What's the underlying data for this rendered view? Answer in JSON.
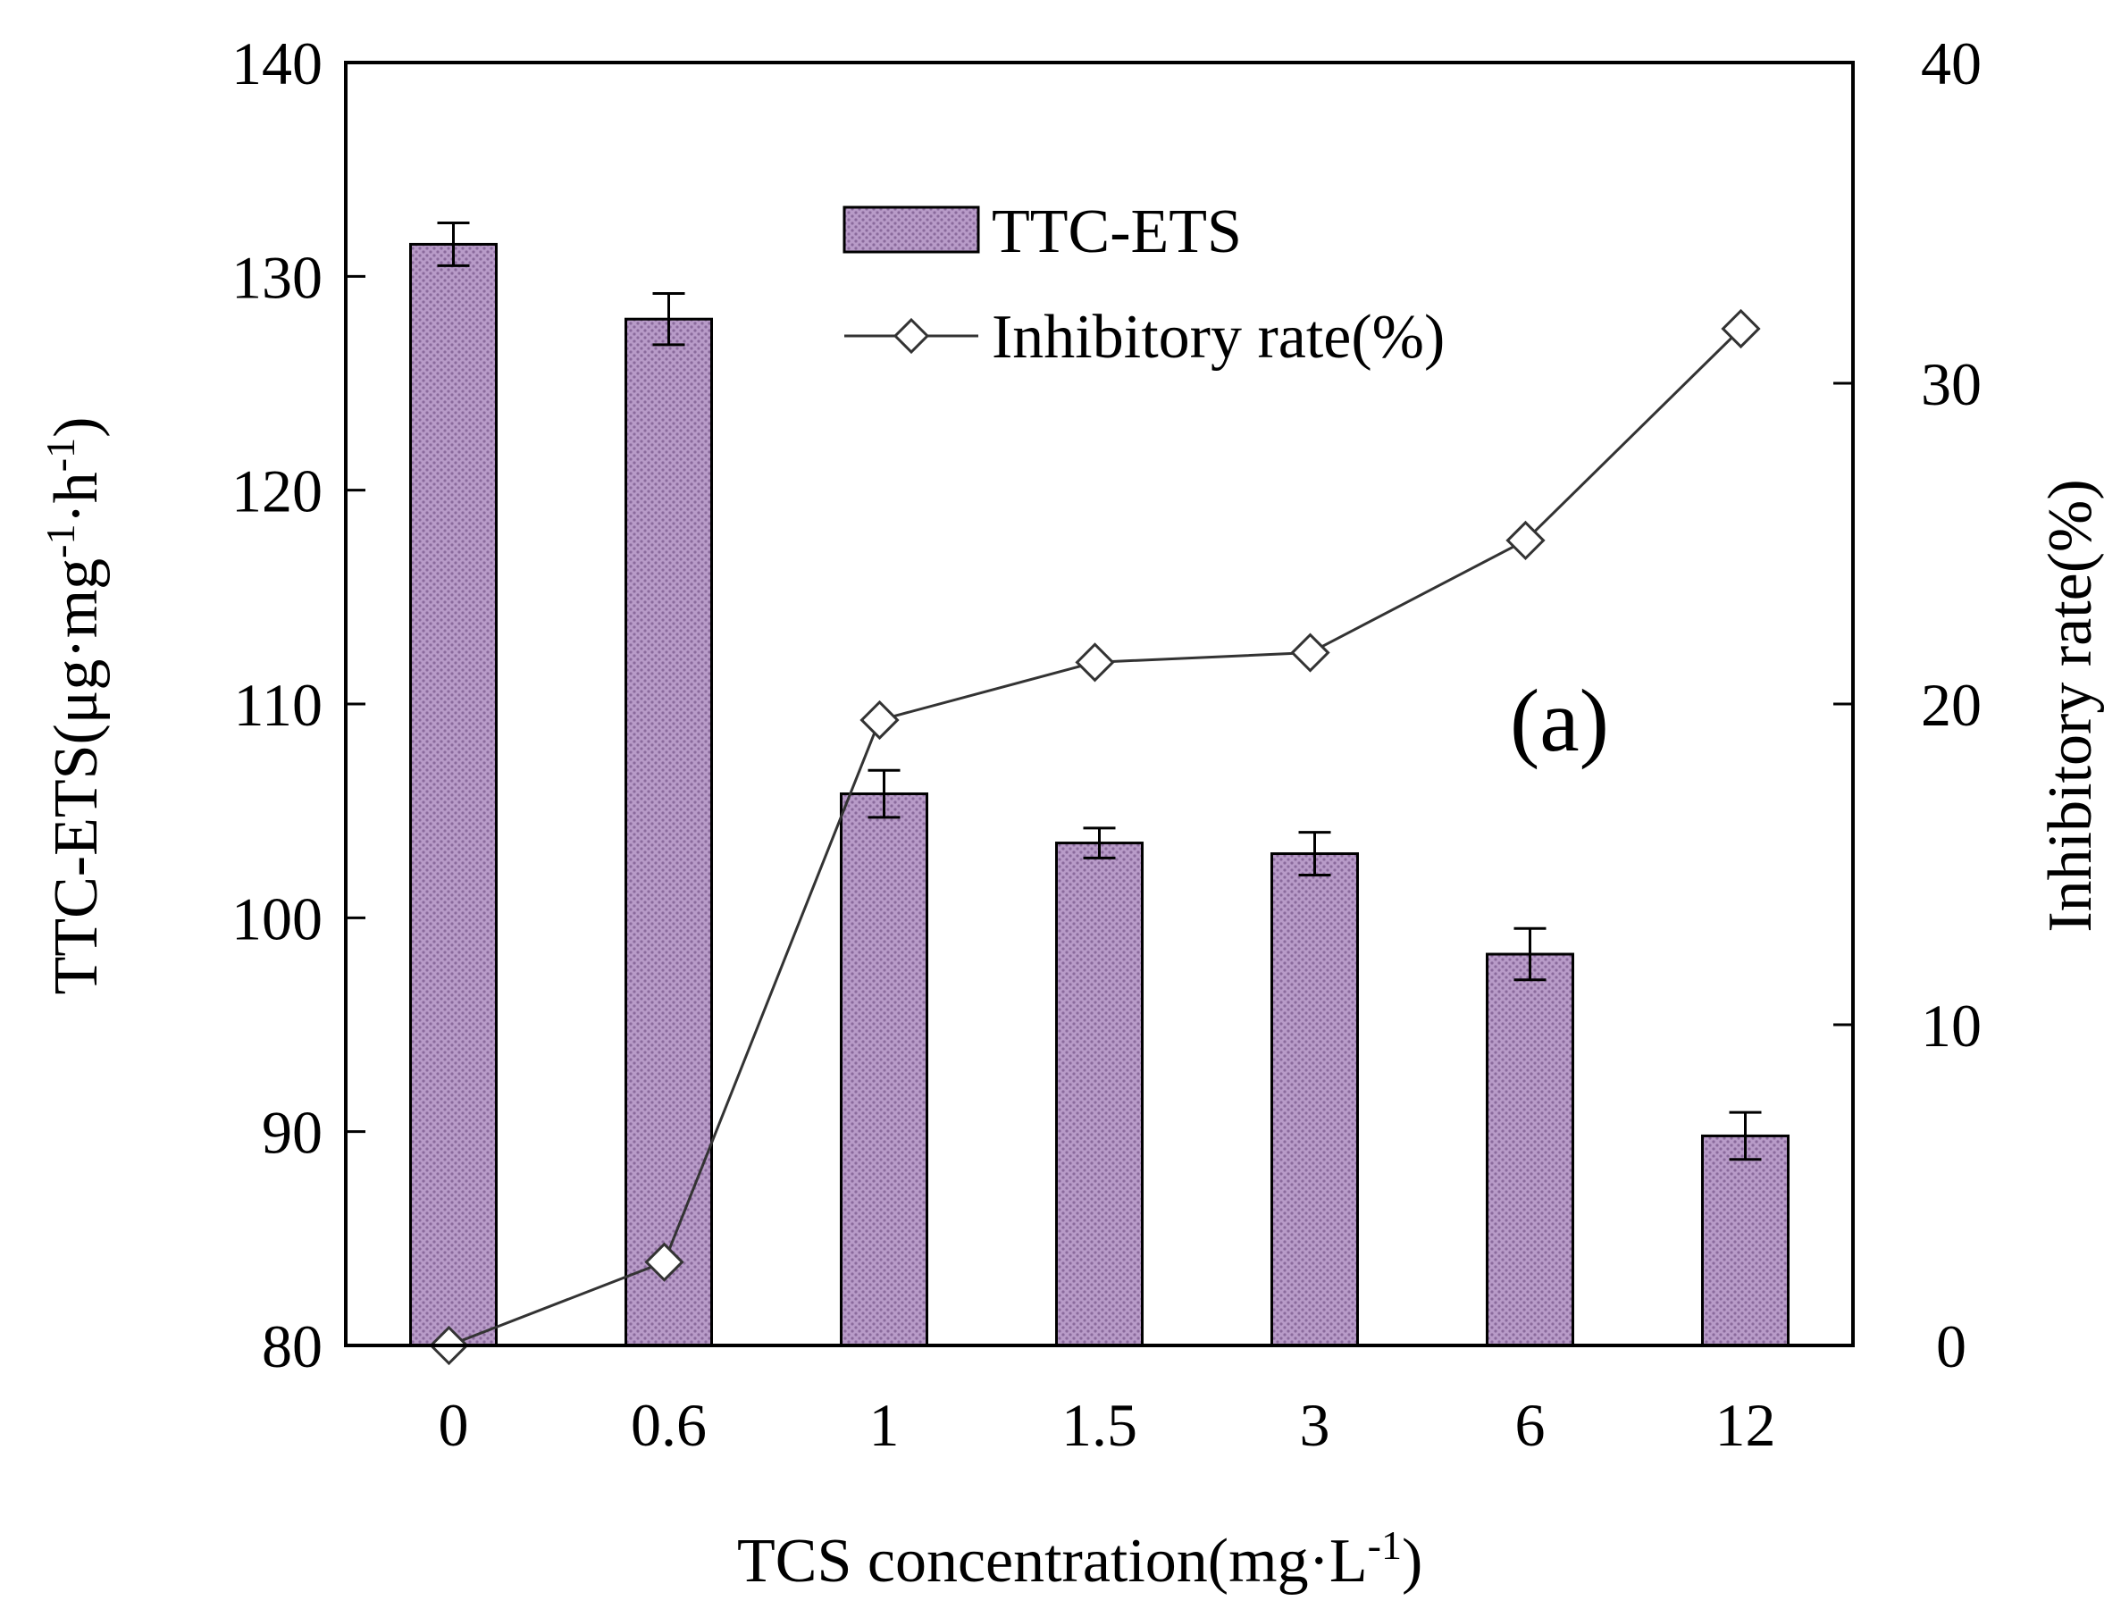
{
  "chart_data": {
    "type": "bar",
    "categories": [
      "0",
      "0.6",
      "1",
      "1.5",
      "3",
      "6",
      "12"
    ],
    "series": [
      {
        "name": "TTC-ETS",
        "type": "bar",
        "axis": "left",
        "values": [
          131.5,
          128.0,
          105.8,
          103.5,
          103.0,
          98.3,
          89.8
        ],
        "errors": [
          1.0,
          1.2,
          1.1,
          0.7,
          1.0,
          1.2,
          1.1
        ]
      },
      {
        "name": "Inhibitory rate(%)",
        "type": "line",
        "axis": "right",
        "values": [
          0.0,
          2.6,
          19.5,
          21.3,
          21.6,
          25.1,
          31.7
        ]
      }
    ],
    "xlabel": {
      "text": "TCS concentration(mg·L",
      "sup": "-1",
      "close": ")"
    },
    "ylabel_left": {
      "p1": "TTC-ETS(μg·mg",
      "s1": "-1",
      "p2": "·h",
      "s2": "-1",
      "p3": ")"
    },
    "ylabel_right": "Inhibitory rate(%)",
    "ylim_left": [
      80,
      140
    ],
    "yticks_left": [
      "80",
      "90",
      "100",
      "110",
      "120",
      "130",
      "140"
    ],
    "ylim_right": [
      0,
      40
    ],
    "yticks_right": [
      "0",
      "10",
      "20",
      "30",
      "40"
    ],
    "legend": {
      "position": "top-center",
      "entries": [
        "TTC-ETS",
        "Inhibitory rate(%)"
      ]
    },
    "panel_label": "(a)",
    "colors": {
      "bar_fill": "#b89bc8",
      "bar_dots": "#8a6a9c",
      "line": "#333333",
      "axis": "#000000"
    }
  }
}
